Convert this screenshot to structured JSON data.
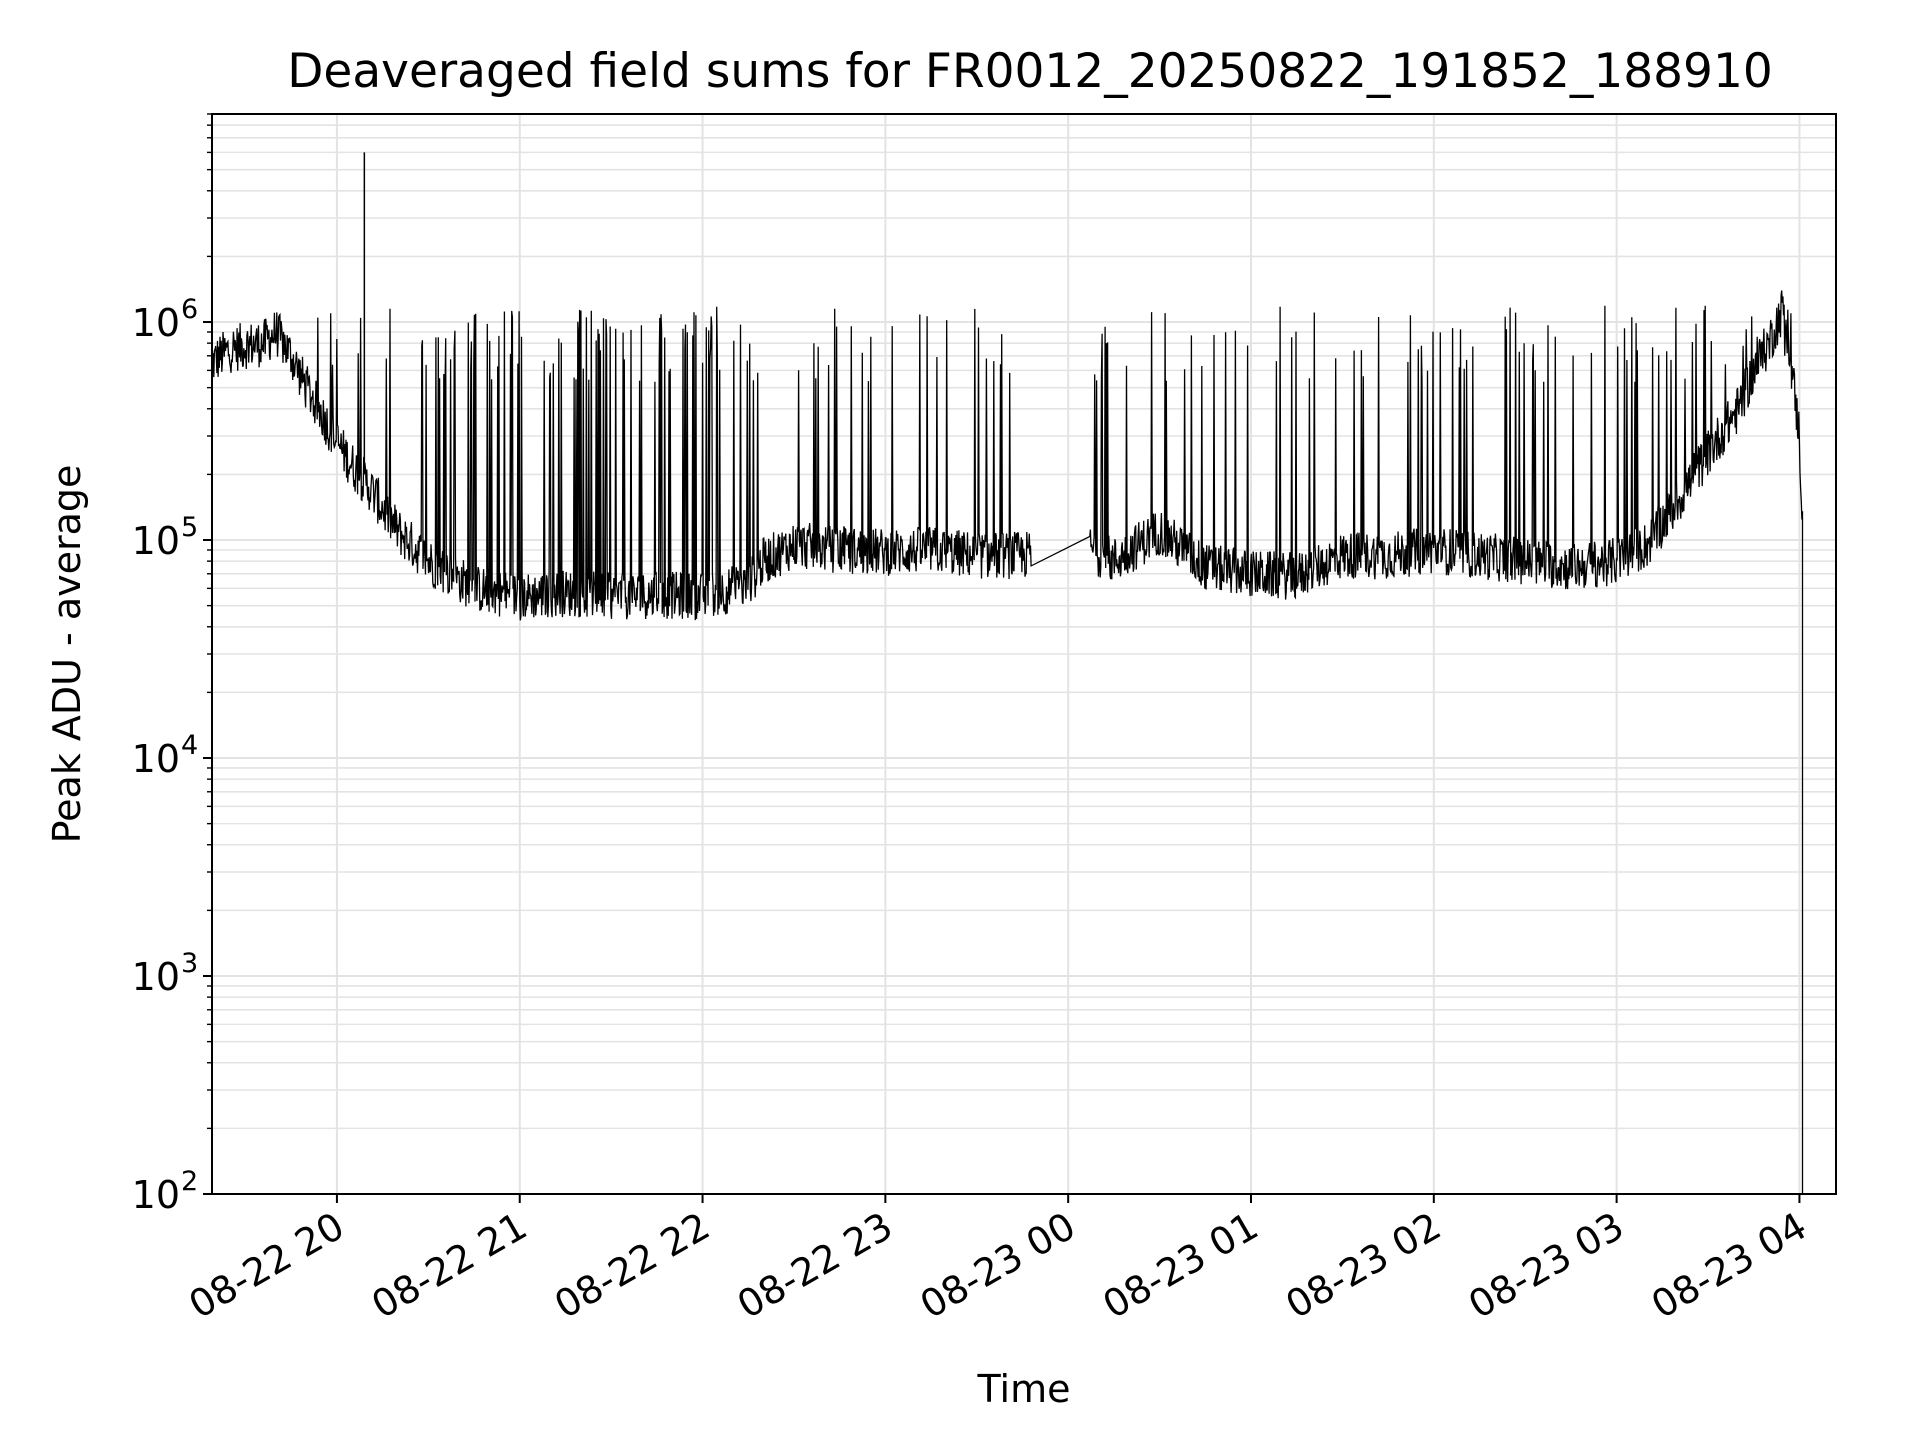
{
  "chart_data": {
    "type": "line",
    "title": "Deaveraged field sums for FR0012_20250822_191852_188910",
    "xlabel": "Time",
    "ylabel": "Peak ADU - average",
    "yscale": "log",
    "ylim": [
      100,
      9000000
    ],
    "xlim": [
      "2025-08-22 19:19",
      "2025-08-23 04:12"
    ],
    "grid": true,
    "line_color": "#000000",
    "x_ticks": [
      "08-22 20",
      "08-22 21",
      "08-22 22",
      "08-22 23",
      "08-23 00",
      "08-23 01",
      "08-23 02",
      "08-23 03",
      "08-23 04"
    ],
    "y_ticks": [
      {
        "base": "10",
        "exp": "2",
        "value": 100
      },
      {
        "base": "10",
        "exp": "3",
        "value": 1000
      },
      {
        "base": "10",
        "exp": "4",
        "value": 10000
      },
      {
        "base": "10",
        "exp": "5",
        "value": 100000
      },
      {
        "base": "10",
        "exp": "6",
        "value": 1000000
      }
    ],
    "series": [
      {
        "x": [
          "2025-08-22 19:19",
          "2025-08-22 19:25",
          "2025-08-22 19:30",
          "2025-08-22 19:36",
          "2025-08-22 19:40",
          "2025-08-22 19:45",
          "2025-08-22 19:50",
          "2025-08-22 19:55",
          "2025-08-22 20:00",
          "2025-08-22 20:05",
          "2025-08-22 20:10",
          "2025-08-22 20:15",
          "2025-08-22 20:20",
          "2025-08-22 20:30",
          "2025-08-22 20:45",
          "2025-08-22 21:00",
          "2025-08-22 21:15",
          "2025-08-22 21:30",
          "2025-08-22 21:45",
          "2025-08-22 22:00",
          "2025-08-22 22:15",
          "2025-08-22 22:20",
          "2025-08-22 22:30",
          "2025-08-22 22:45",
          "2025-08-22 23:00",
          "2025-08-22 23:15",
          "2025-08-22 23:30",
          "2025-08-22 23:45",
          "2025-08-23 00:05",
          "2025-08-23 00:15",
          "2025-08-23 00:30",
          "2025-08-23 00:45",
          "2025-08-23 01:00",
          "2025-08-23 01:15",
          "2025-08-23 01:30",
          "2025-08-23 01:45",
          "2025-08-23 02:00",
          "2025-08-23 02:15",
          "2025-08-23 02:30",
          "2025-08-23 02:45",
          "2025-08-23 03:00",
          "2025-08-23 03:10",
          "2025-08-23 03:20",
          "2025-08-23 03:30",
          "2025-08-23 03:40",
          "2025-08-23 03:45",
          "2025-08-23 03:50",
          "2025-08-23 03:55",
          "2025-08-23 04:00",
          "2025-08-23 04:01"
        ],
        "y": [
          650000,
          750000,
          780000,
          800000,
          900000,
          700000,
          500000,
          380000,
          280000,
          220000,
          180000,
          140000,
          110000,
          80000,
          60000,
          55000,
          57000,
          55000,
          56000,
          55000,
          62000,
          80000,
          95000,
          90000,
          88000,
          90000,
          85000,
          85000,
          95000,
          80000,
          110000,
          75000,
          70000,
          68000,
          85000,
          85000,
          90000,
          85000,
          80000,
          75000,
          80000,
          95000,
          150000,
          250000,
          400000,
          600000,
          800000,
          1200000,
          300000,
          120000
        ]
      }
    ]
  }
}
